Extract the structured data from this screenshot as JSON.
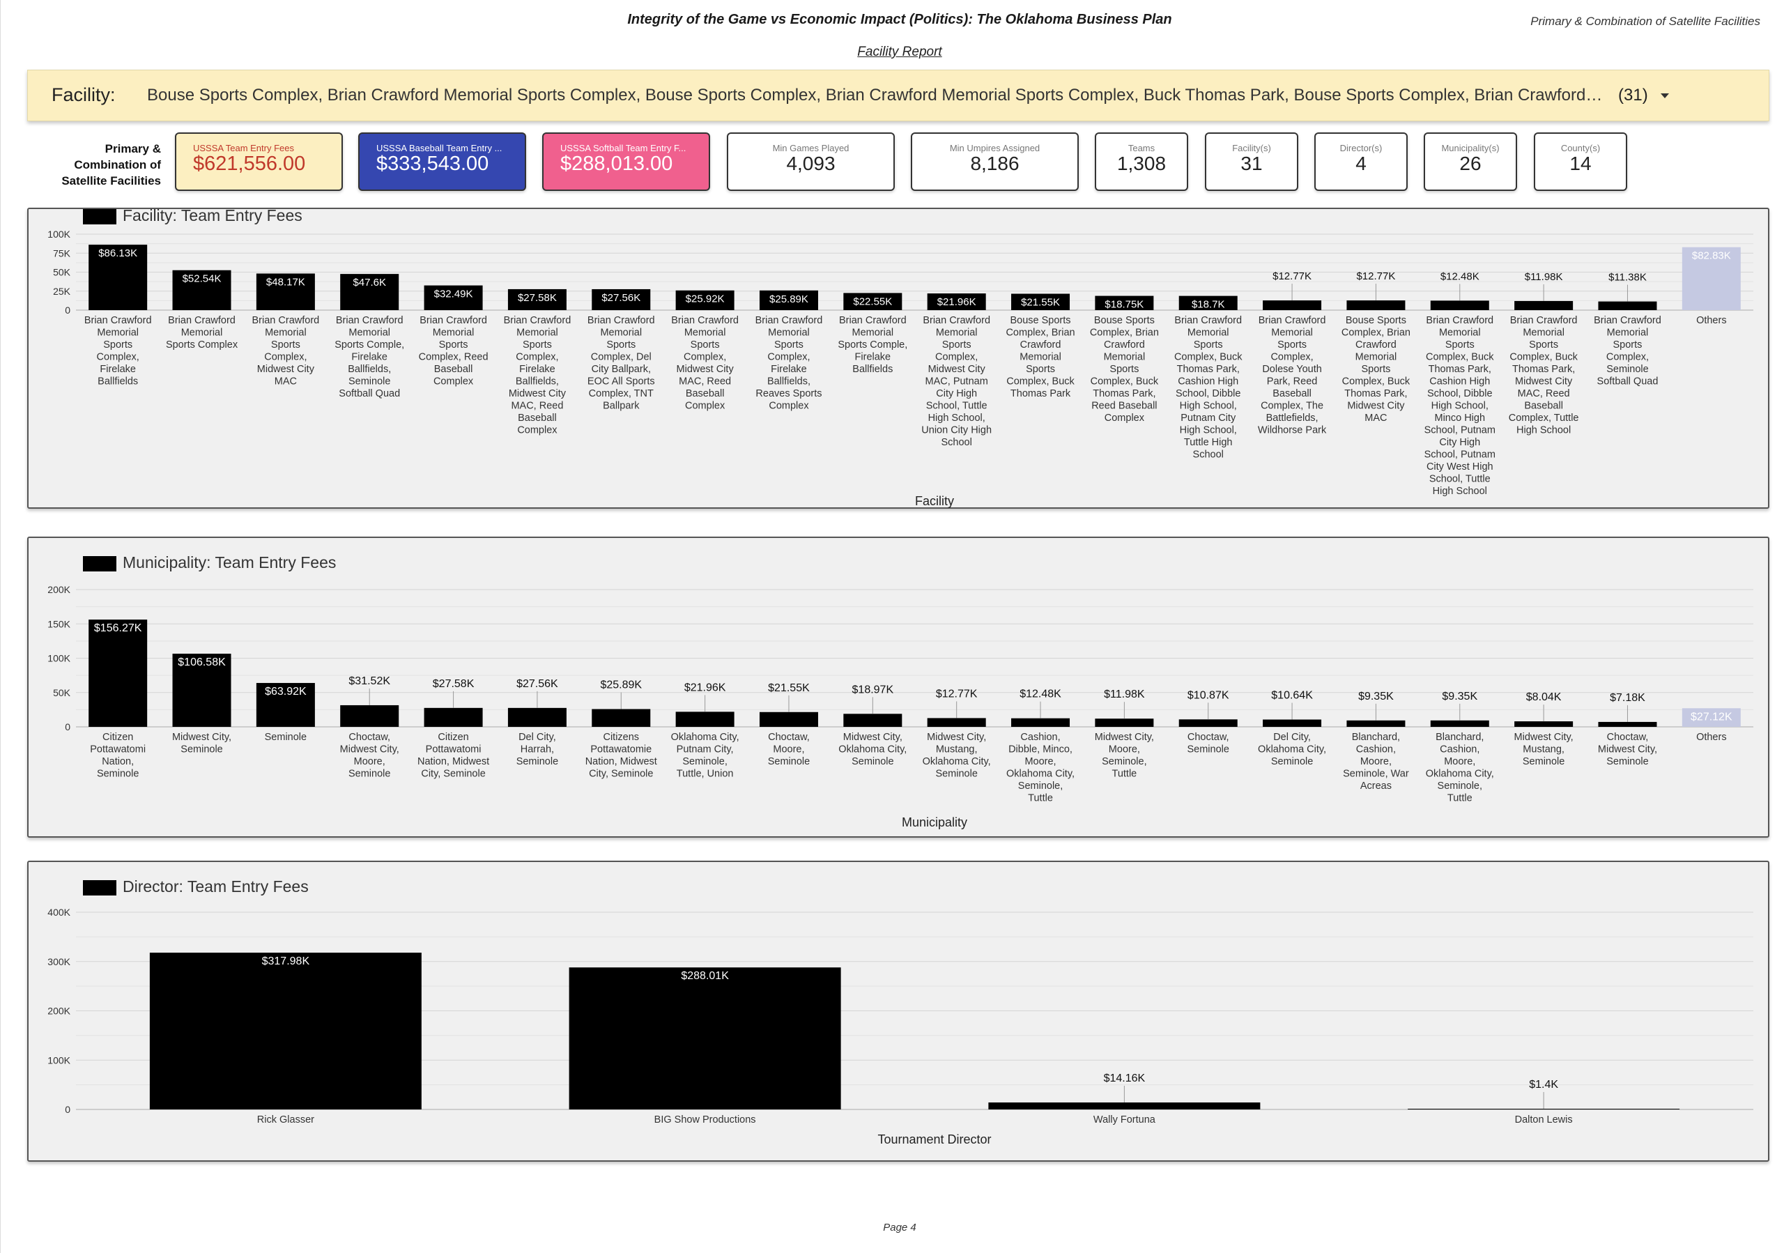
{
  "header": {
    "title": "Integrity of the Game vs Economic Impact (Politics): The Oklahoma Business Plan",
    "subtitle": "Primary & Combination of Satellite Facilities",
    "report_link": "Facility Report"
  },
  "filter": {
    "label": "Facility",
    "value": "Bouse Sports Complex, Brian Crawford Memorial Sports Complex, Bouse Sports Complex, Brian Crawford Memorial Sports Complex, Buck Thomas Park, Bouse Sports Complex, Brian Crawford Memorial Spo...",
    "count": "(31)"
  },
  "kpis": {
    "side_label": "Primary & Combination of Satellite Facilities",
    "items": [
      {
        "title": "USSSA Team Entry Fees",
        "value": "$621,556.00",
        "bg": "#fcefc1",
        "title_color": "#c0392b",
        "value_color": "#c0392b"
      },
      {
        "title": "USSSA Baseball Team Entry ...",
        "value": "$333,543.00",
        "bg": "#3547b0",
        "title_color": "#ffffff",
        "value_color": "#ffffff"
      },
      {
        "title": "USSSA Softball Team Entry F...",
        "value": "$288,013.00",
        "bg": "#f0608e",
        "title_color": "#ffffff",
        "value_color": "#ffffff"
      },
      {
        "title": "Min Games Played",
        "value": "4,093",
        "bg": "#ffffff",
        "title_color": "#777777",
        "value_color": "#222222"
      },
      {
        "title": "Min Umpires Assigned",
        "value": "8,186",
        "bg": "#ffffff",
        "title_color": "#777777",
        "value_color": "#222222"
      },
      {
        "title": "Teams",
        "value": "1,308",
        "bg": "#ffffff",
        "title_color": "#777777",
        "value_color": "#222222"
      },
      {
        "title": "Facility(s)",
        "value": "31",
        "bg": "#ffffff",
        "title_color": "#777777",
        "value_color": "#222222"
      },
      {
        "title": "Director(s)",
        "value": "4",
        "bg": "#ffffff",
        "title_color": "#777777",
        "value_color": "#222222"
      },
      {
        "title": "Municipality(s)",
        "value": "26",
        "bg": "#ffffff",
        "title_color": "#777777",
        "value_color": "#222222"
      },
      {
        "title": "County(s)",
        "value": "14",
        "bg": "#ffffff",
        "title_color": "#777777",
        "value_color": "#222222"
      }
    ]
  },
  "chart_data": [
    {
      "type": "bar",
      "legend": "Facility: Team Entry Fees",
      "xlabel": "Facility",
      "ylabel": "",
      "ylim": [
        0,
        100000
      ],
      "y_ticks": [
        0,
        25000,
        50000,
        75000,
        100000
      ],
      "y_tick_labels": [
        "0",
        "25K",
        "50K",
        "75K",
        "100K"
      ],
      "bar_color": "#000000",
      "others_color": "#c5c9e2",
      "categories": [
        "Brian Crawford Memorial Sports Complex, Firelake Ballfields",
        "Brian Crawford Memorial Sports Complex",
        "Brian Crawford Memorial Sports Complex, Midwest City MAC",
        "Brian Crawford Memorial Sports Comple, Firelake Ballfields, Seminole Softball Quad",
        "Brian Crawford Memorial Sports Complex, Reed Baseball Complex",
        "Brian Crawford Memorial Sports Complex, Firelake Ballfields, Midwest City MAC, Reed Baseball Complex",
        "Brian Crawford Memorial Sports Complex, Del City Ballpark, EOC All Sports Complex, TNT Ballpark",
        "Brian Crawford Memorial Sports Complex, Midwest City MAC, Reed Baseball Complex",
        "Brian Crawford Memorial Sports Complex, Firelake Ballfields, Reaves Sports Complex",
        "Brian Crawford Memorial Sports Comple, Firelake Ballfields",
        "Brian Crawford Memorial Sports Complex, Midwest City MAC, Putnam City High School, Tuttle High School, Union City High School",
        "Bouse Sports Complex, Brian Crawford Memorial Sports Complex, Buck Thomas Park",
        "Bouse Sports Complex, Brian Crawford Memorial Sports Complex, Buck Thomas Park, Reed Baseball Complex",
        "Brian Crawford Memorial Sports Complex, Buck Thomas Park, Cashion High School, Dibble High School, Putnam City High School, Tuttle High School",
        "Brian Crawford Memorial Sports Complex, Dolese Youth Park, Reed Baseball Complex, The Battlefields, Wildhorse Park",
        "Bouse Sports Complex, Brian Crawford Memorial Sports Complex, Buck Thomas Park, Midwest City MAC",
        "Brian Crawford Memorial Sports Complex, Buck Thomas Park, Cashion High School, Dibble High School, Minco High School, Putnam City High School, Putnam City West High School, Tuttle High School",
        "Brian Crawford Memorial Sports Complex, Buck Thomas Park, Midwest City MAC, Reed Baseball Complex, Tuttle High School",
        "Brian Crawford Memorial Sports Complex, Seminole Softball Quad",
        "Others"
      ],
      "category_lines": [
        [
          "Brian Crawford",
          "Memorial",
          "Sports",
          "Complex,",
          "Firelake",
          "Ballfields"
        ],
        [
          "Brian Crawford",
          "Memorial",
          "Sports Complex"
        ],
        [
          "Brian Crawford",
          "Memorial",
          "Sports",
          "Complex,",
          "Midwest City",
          "MAC"
        ],
        [
          "Brian Crawford",
          "Memorial",
          "Sports Comple,",
          "Firelake",
          "Ballfields,",
          "Seminole",
          "Softball Quad"
        ],
        [
          "Brian Crawford",
          "Memorial",
          "Sports",
          "Complex, Reed",
          "Baseball",
          "Complex"
        ],
        [
          "Brian Crawford",
          "Memorial",
          "Sports",
          "Complex,",
          "Firelake",
          "Ballfields,",
          "Midwest City",
          "MAC, Reed",
          "Baseball",
          "Complex"
        ],
        [
          "Brian Crawford",
          "Memorial",
          "Sports",
          "Complex, Del",
          "City Ballpark,",
          "EOC All Sports",
          "Complex, TNT",
          "Ballpark"
        ],
        [
          "Brian Crawford",
          "Memorial",
          "Sports",
          "Complex,",
          "Midwest City",
          "MAC, Reed",
          "Baseball",
          "Complex"
        ],
        [
          "Brian Crawford",
          "Memorial",
          "Sports",
          "Complex,",
          "Firelake",
          "Ballfields,",
          "Reaves Sports",
          "Complex"
        ],
        [
          "Brian Crawford",
          "Memorial",
          "Sports Comple,",
          "Firelake",
          "Ballfields"
        ],
        [
          "Brian Crawford",
          "Memorial",
          "Sports",
          "Complex,",
          "Midwest City",
          "MAC, Putnam",
          "City High",
          "School, Tuttle",
          "High School,",
          "Union City High",
          "School"
        ],
        [
          "Bouse Sports",
          "Complex, Brian",
          "Crawford",
          "Memorial",
          "Sports",
          "Complex, Buck",
          "Thomas Park"
        ],
        [
          "Bouse Sports",
          "Complex, Brian",
          "Crawford",
          "Memorial",
          "Sports",
          "Complex, Buck",
          "Thomas Park,",
          "Reed Baseball",
          "Complex"
        ],
        [
          "Brian Crawford",
          "Memorial",
          "Sports",
          "Complex, Buck",
          "Thomas Park,",
          "Cashion High",
          "School, Dibble",
          "High School,",
          "Putnam City",
          "High School,",
          "Tuttle High",
          "School"
        ],
        [
          "Brian Crawford",
          "Memorial",
          "Sports",
          "Complex,",
          "Dolese Youth",
          "Park, Reed",
          "Baseball",
          "Complex, The",
          "Battlefields,",
          "Wildhorse Park"
        ],
        [
          "Bouse Sports",
          "Complex, Brian",
          "Crawford",
          "Memorial",
          "Sports",
          "Complex, Buck",
          "Thomas Park,",
          "Midwest City",
          "MAC"
        ],
        [
          "Brian Crawford",
          "Memorial",
          "Sports",
          "Complex, Buck",
          "Thomas Park,",
          "Cashion High",
          "School, Dibble",
          "High School,",
          "Minco High",
          "School, Putnam",
          "City High",
          "School, Putnam",
          "City West High",
          "School, Tuttle",
          "High School"
        ],
        [
          "Brian Crawford",
          "Memorial",
          "Sports",
          "Complex, Buck",
          "Thomas Park,",
          "Midwest City",
          "MAC, Reed",
          "Baseball",
          "Complex, Tuttle",
          "High School"
        ],
        [
          "Brian Crawford",
          "Memorial",
          "Sports",
          "Complex,",
          "Seminole",
          "Softball Quad"
        ],
        [
          "Others"
        ]
      ],
      "values": [
        86130,
        52540,
        48170,
        47600,
        32490,
        27580,
        27560,
        25920,
        25890,
        22550,
        21960,
        21550,
        18750,
        18700,
        12770,
        12770,
        12480,
        11980,
        11380,
        82830
      ],
      "data_labels": [
        "$86.13K",
        "$52.54K",
        "$48.17K",
        "$47.6K",
        "$32.49K",
        "$27.58K",
        "$27.56K",
        "$25.92K",
        "$25.89K",
        "$22.55K",
        "$21.96K",
        "$21.55K",
        "$18.75K",
        "$18.7K",
        "$12.77K",
        "$12.77K",
        "$12.48K",
        "$11.98K",
        "$11.38K",
        "$82.83K"
      ]
    },
    {
      "type": "bar",
      "legend": "Municipality: Team Entry Fees",
      "xlabel": "Municipality",
      "ylabel": "",
      "ylim": [
        0,
        200000
      ],
      "y_ticks": [
        0,
        50000,
        100000,
        150000,
        200000
      ],
      "y_tick_labels": [
        "0",
        "50K",
        "100K",
        "150K",
        "200K"
      ],
      "bar_color": "#000000",
      "others_color": "#c5c9e2",
      "categories": [
        "Citizen Pottawatomi Nation, Seminole",
        "Midwest City, Seminole",
        "Seminole",
        "Choctaw, Midwest City, Moore, Seminole",
        "Citizen Pottawatomi Nation, Midwest City, Seminole",
        "Del City, Harrah, Seminole",
        "Citizens Pottawatomie Nation, Midwest City, Seminole",
        "Oklahoma City, Putnam City, Seminole, Tuttle, Union",
        "Choctaw, Moore, Seminole",
        "Midwest City, Oklahoma City, Seminole",
        "Midwest City, Mustang, Oklahoma City, Seminole",
        "Cashion, Dibble, Minco, Moore, Oklahoma City, Seminole, Tuttle",
        "Midwest City, Moore, Seminole, Tuttle",
        "Choctaw, Seminole",
        "Del City, Oklahoma City, Seminole",
        "Blanchard, Cashion, Moore, Seminole, War Acreas",
        "Blanchard, Cashion, Moore, Oklahoma City, Seminole, Tuttle",
        "Midwest City, Mustang, Seminole",
        "Choctaw, Midwest City, Seminole",
        "Others"
      ],
      "category_lines": [
        [
          "Citizen",
          "Pottawatomi",
          "Nation,",
          "Seminole"
        ],
        [
          "Midwest City,",
          "Seminole"
        ],
        [
          "Seminole"
        ],
        [
          "Choctaw,",
          "Midwest City,",
          "Moore,",
          "Seminole"
        ],
        [
          "Citizen",
          "Pottawatomi",
          "Nation, Midwest",
          "City, Seminole"
        ],
        [
          "Del City,",
          "Harrah,",
          "Seminole"
        ],
        [
          "Citizens",
          "Pottawatomie",
          "Nation, Midwest",
          "City, Seminole"
        ],
        [
          "Oklahoma City,",
          "Putnam City,",
          "Seminole,",
          "Tuttle, Union"
        ],
        [
          "Choctaw,",
          "Moore,",
          "Seminole"
        ],
        [
          "Midwest City,",
          "Oklahoma City,",
          "Seminole"
        ],
        [
          "Midwest City,",
          "Mustang,",
          "Oklahoma City,",
          "Seminole"
        ],
        [
          "Cashion,",
          "Dibble, Minco,",
          "Moore,",
          "Oklahoma City,",
          "Seminole,",
          "Tuttle"
        ],
        [
          "Midwest City,",
          "Moore,",
          "Seminole,",
          "Tuttle"
        ],
        [
          "Choctaw,",
          "Seminole"
        ],
        [
          "Del City,",
          "Oklahoma City,",
          "Seminole"
        ],
        [
          "Blanchard,",
          "Cashion,",
          "Moore,",
          "Seminole, War",
          "Acreas"
        ],
        [
          "Blanchard,",
          "Cashion,",
          "Moore,",
          "Oklahoma City,",
          "Seminole,",
          "Tuttle"
        ],
        [
          "Midwest City,",
          "Mustang,",
          "Seminole"
        ],
        [
          "Choctaw,",
          "Midwest City,",
          "Seminole"
        ],
        [
          "Others"
        ]
      ],
      "values": [
        156270,
        106580,
        63920,
        31520,
        27580,
        27560,
        25890,
        21960,
        21550,
        18970,
        12770,
        12480,
        11980,
        10870,
        10640,
        9350,
        9350,
        8040,
        7180,
        27120
      ],
      "data_labels": [
        "$156.27K",
        "$106.58K",
        "$63.92K",
        "$31.52K",
        "$27.58K",
        "$27.56K",
        "$25.89K",
        "$21.96K",
        "$21.55K",
        "$18.97K",
        "$12.77K",
        "$12.48K",
        "$11.98K",
        "$10.87K",
        "$10.64K",
        "$9.35K",
        "$9.35K",
        "$8.04K",
        "$7.18K",
        "$27.12K"
      ]
    },
    {
      "type": "bar",
      "legend": "Director: Team Entry Fees",
      "xlabel": "Tournament Director",
      "ylabel": "",
      "ylim": [
        0,
        400000
      ],
      "y_ticks": [
        0,
        100000,
        200000,
        300000,
        400000
      ],
      "y_tick_labels": [
        "0",
        "100K",
        "200K",
        "300K",
        "400K"
      ],
      "bar_color": "#000000",
      "others_color": "#c5c9e2",
      "categories": [
        "Rick Glasser",
        "BIG Show Productions",
        "Wally Fortuna",
        "Dalton Lewis"
      ],
      "category_lines": [
        [
          "Rick Glasser"
        ],
        [
          "BIG Show Productions"
        ],
        [
          "Wally Fortuna"
        ],
        [
          "Dalton Lewis"
        ]
      ],
      "values": [
        317980,
        288010,
        14160,
        1400
      ],
      "data_labels": [
        "$317.98K",
        "$288.01K",
        "$14.16K",
        "$1.4K"
      ]
    }
  ],
  "footer": {
    "page": "Page 4"
  }
}
